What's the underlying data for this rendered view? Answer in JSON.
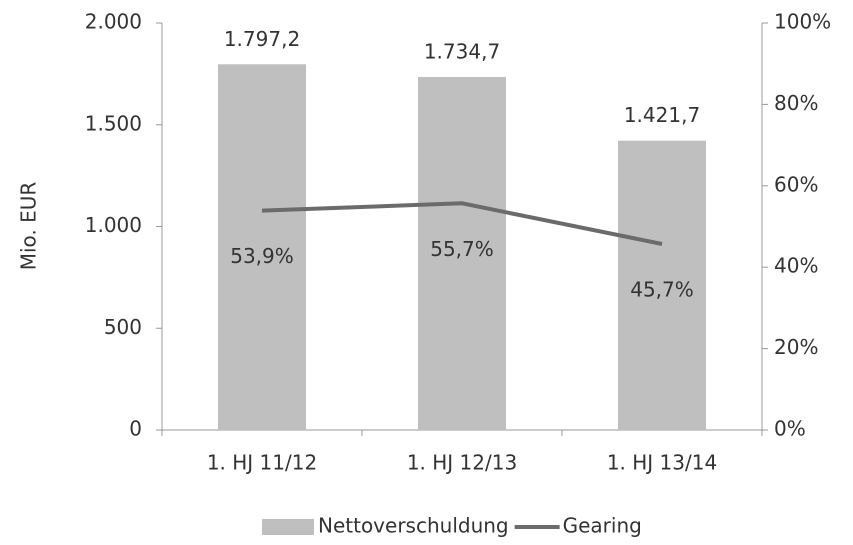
{
  "chart_data": {
    "type": "bar",
    "categories": [
      "1. HJ 11/12",
      "1. HJ 12/13",
      "1. HJ 13/14"
    ],
    "series": [
      {
        "name": "Nettoverschuldung",
        "type": "bar",
        "color": "#bfbfbf",
        "values": [
          1797.2,
          1734.7,
          1421.7
        ],
        "value_labels": [
          "1.797,2",
          "1.734,7",
          "1.421,7"
        ]
      },
      {
        "name": "Gearing",
        "type": "line",
        "axis": "y2",
        "color": "#6b6b6b",
        "values": [
          53.9,
          55.7,
          45.7
        ],
        "value_labels": [
          "53,9%",
          "55,7%",
          "45,7%"
        ]
      }
    ],
    "ylabel": "Mio. EUR",
    "ylim": [
      0,
      2000
    ],
    "yticks": [
      0,
      500,
      {
        "value": 1000,
        "label": "1.000"
      },
      {
        "value": 1500,
        "label": "1.500"
      },
      {
        "value": 2000,
        "label": "2.000"
      }
    ],
    "y2lim": [
      0,
      100
    ],
    "y2ticks": [
      {
        "value": 0,
        "label": "0%"
      },
      {
        "value": 20,
        "label": "20%"
      },
      {
        "value": 40,
        "label": "40%"
      },
      {
        "value": 60,
        "label": "60%"
      },
      {
        "value": 80,
        "label": "80%"
      },
      {
        "value": 100,
        "label": "100%"
      }
    ],
    "legend": "bottom"
  }
}
